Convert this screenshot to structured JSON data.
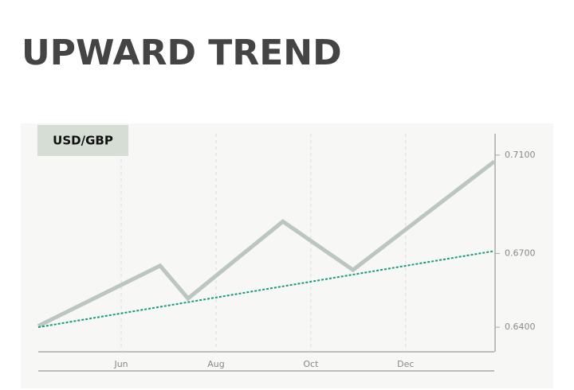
{
  "chart_data": {
    "type": "line",
    "title": "UPWARD TREND",
    "label": "USD/GBP",
    "xticks": [
      {
        "value": 6,
        "label": "Jun"
      },
      {
        "value": 8,
        "label": "Aug"
      },
      {
        "value": 10,
        "label": "Oct"
      },
      {
        "value": 12,
        "label": "Dec"
      }
    ],
    "xlim": [
      4.25,
      13.87
    ],
    "ylim": [
      0.63,
      0.72
    ],
    "yticks": [
      {
        "value": 0.64,
        "label": "0.6400"
      },
      {
        "value": 0.67,
        "label": "0.6700"
      },
      {
        "value": 0.71,
        "label": "0.7100"
      }
    ],
    "series": [
      {
        "color": "#bcc6c0",
        "style": "solid",
        "x": [
          4.25,
          6.82,
          7.41,
          9.41,
          10.89,
          13.87
        ],
        "values": [
          0.6405,
          0.665,
          0.6517,
          0.683,
          0.6633,
          0.7074
        ]
      },
      {
        "color": "#1a9a7c",
        "style": "dotted",
        "x": [
          4.25,
          13.87
        ],
        "values": [
          0.64,
          0.671
        ]
      }
    ],
    "grid": true
  }
}
